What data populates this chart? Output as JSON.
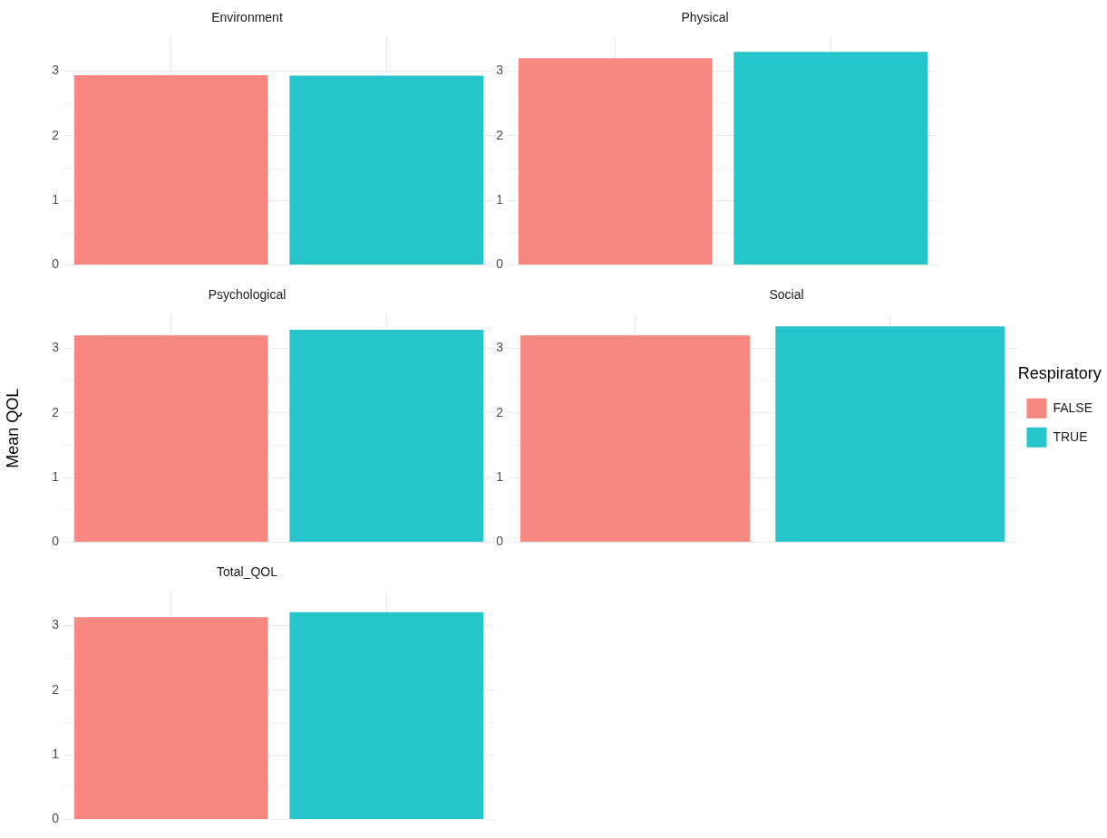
{
  "chart_data": [
    {
      "type": "bar",
      "title": "Environment",
      "categories": [
        null,
        null
      ],
      "stacked": true,
      "ylim": [
        0,
        3.53
      ],
      "yticks": [
        0,
        {
          "value": 0.5,
          "label": null
        },
        1,
        {
          "value": 1.5,
          "label": null
        },
        2,
        {
          "value": 2.5,
          "label": null
        },
        3
      ],
      "grid": true,
      "tick_labels": "y",
      "legend": false,
      "series": [
        {
          "color": "#f8877f",
          "values": [
            2.94,
            null
          ]
        },
        {
          "color": "#26c5cb",
          "values": [
            null,
            2.93
          ]
        }
      ]
    },
    {
      "type": "bar",
      "title": "Physical",
      "categories": [
        null,
        null
      ],
      "stacked": true,
      "ylim": [
        0,
        3.53
      ],
      "yticks": [
        0,
        {
          "value": 0.5,
          "label": null
        },
        1,
        {
          "value": 1.5,
          "label": null
        },
        2,
        {
          "value": 2.5,
          "label": null
        },
        3
      ],
      "grid": true,
      "tick_labels": "y",
      "legend": false,
      "series": [
        {
          "color": "#f8877f",
          "values": [
            3.2,
            null
          ]
        },
        {
          "color": "#26c5cb",
          "values": [
            null,
            3.3
          ]
        }
      ]
    },
    {
      "type": "bar",
      "title": "Psychological",
      "ylabel": "Mean QOL",
      "categories": [
        null,
        null
      ],
      "stacked": true,
      "ylim": [
        0,
        3.53
      ],
      "yticks": [
        0,
        {
          "value": 0.5,
          "label": null
        },
        1,
        {
          "value": 1.5,
          "label": null
        },
        2,
        {
          "value": 2.5,
          "label": null
        },
        3
      ],
      "grid": true,
      "tick_labels": "y",
      "legend": false,
      "series": [
        {
          "color": "#f8877f",
          "values": [
            3.2,
            null
          ]
        },
        {
          "color": "#26c5cb",
          "values": [
            null,
            3.29
          ]
        }
      ]
    },
    {
      "type": "bar",
      "title": "Social",
      "categories": [
        null,
        null
      ],
      "stacked": true,
      "ylim": [
        0,
        3.53
      ],
      "yticks": [
        0,
        {
          "value": 0.5,
          "label": null
        },
        1,
        {
          "value": 1.5,
          "label": null
        },
        2,
        {
          "value": 2.5,
          "label": null
        },
        3
      ],
      "grid": true,
      "tick_labels": "y",
      "legend": "right",
      "legend_title": "Respiratory",
      "series": [
        {
          "name": "FALSE",
          "color": "#f8877f",
          "values": [
            3.2,
            null
          ]
        },
        {
          "name": "TRUE",
          "color": "#26c5cb",
          "values": [
            null,
            3.34
          ]
        }
      ]
    },
    {
      "type": "bar",
      "title": "Total_QOL",
      "categories": [
        null,
        null
      ],
      "stacked": true,
      "ylim": [
        0,
        3.53
      ],
      "yticks": [
        0,
        {
          "value": 0.5,
          "label": null
        },
        1,
        {
          "value": 1.5,
          "label": null
        },
        2,
        {
          "value": 2.5,
          "label": null
        },
        3
      ],
      "grid": true,
      "tick_labels": "y",
      "legend": false,
      "series": [
        {
          "color": "#f8877f",
          "values": [
            3.13,
            null
          ]
        },
        {
          "color": "#26c5cb",
          "values": [
            null,
            3.21
          ]
        }
      ]
    }
  ]
}
